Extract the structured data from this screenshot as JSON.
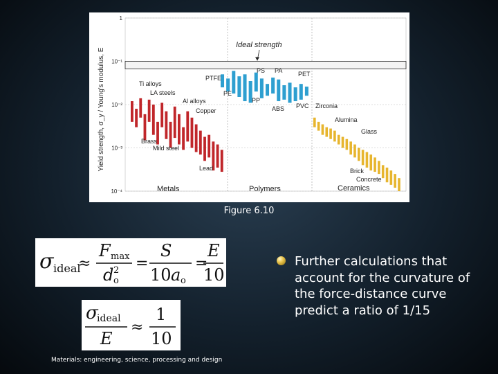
{
  "slide": {
    "figure_caption": "Figure 6.10",
    "bullet": "Further calculations that account for the curvature of the force-distance curve predict a ratio of 1/15",
    "source": "Materials: engineering, science, processing and design"
  },
  "equations": {
    "eq1": {
      "lhs": "σ",
      "lhs_sub": "ideal",
      "approx": "≈",
      "f": "F",
      "f_sub": "max",
      "d": "d",
      "d_sub": "o",
      "d_sup": "2",
      "eq": "=",
      "s": "S",
      "ten": "10",
      "a": "a",
      "a_sub": "o",
      "e": "E"
    },
    "eq2": {
      "lhs": "σ",
      "lhs_sub": "ideal",
      "den": "E",
      "approx": "≈",
      "one": "1",
      "ten": "10"
    }
  },
  "chart_data": {
    "type": "bar",
    "ylabel": "Yield strength, σ_y / Young's modulus, E",
    "yscale": "log",
    "ylim": [
      0.0001,
      1
    ],
    "yticks": [
      {
        "value": 1,
        "label": "1"
      },
      {
        "value": 0.1,
        "label": "10⁻¹"
      },
      {
        "value": 0.01,
        "label": "10⁻²"
      },
      {
        "value": 0.001,
        "label": "10⁻³"
      },
      {
        "value": 0.0001,
        "label": "10⁻⁴"
      }
    ],
    "ideal_strength": {
      "label": "Ideal strength",
      "low": 0.067,
      "high": 0.1
    },
    "groups": [
      {
        "name": "Metals",
        "color": "#c0262a",
        "labels": [
          "Ti alloys",
          "LA steels",
          "Al alloys",
          "Copper",
          "Brass",
          "Mild steel",
          "Lead"
        ],
        "bars": [
          [
            0.012,
            0.004
          ],
          [
            0.008,
            0.003
          ],
          [
            0.014,
            0.005
          ],
          [
            0.006,
            0.0015
          ],
          [
            0.013,
            0.004
          ],
          [
            0.01,
            0.002
          ],
          [
            0.004,
            0.0012
          ],
          [
            0.011,
            0.003
          ],
          [
            0.007,
            0.0016
          ],
          [
            0.004,
            0.001
          ],
          [
            0.009,
            0.0017
          ],
          [
            0.006,
            0.0012
          ],
          [
            0.003,
            0.0009
          ],
          [
            0.007,
            0.0014
          ],
          [
            0.005,
            0.001
          ],
          [
            0.0035,
            0.0008
          ],
          [
            0.0025,
            0.0007
          ],
          [
            0.0018,
            0.0005
          ],
          [
            0.002,
            0.0006
          ],
          [
            0.0014,
            0.0003
          ],
          [
            0.0012,
            0.00035
          ],
          [
            0.0009,
            0.00028
          ]
        ]
      },
      {
        "name": "Polymers",
        "color": "#2e9fd0",
        "labels": [
          "PTFE",
          "PE",
          "PS",
          "PA",
          "PET",
          "PP",
          "ABS",
          "PVC"
        ],
        "bars": [
          [
            0.05,
            0.025
          ],
          [
            0.04,
            0.02
          ],
          [
            0.06,
            0.018
          ],
          [
            0.045,
            0.015
          ],
          [
            0.05,
            0.012
          ],
          [
            0.035,
            0.011
          ],
          [
            0.055,
            0.02
          ],
          [
            0.04,
            0.014
          ],
          [
            0.03,
            0.016
          ],
          [
            0.042,
            0.018
          ],
          [
            0.038,
            0.012
          ],
          [
            0.028,
            0.013
          ],
          [
            0.032,
            0.011
          ],
          [
            0.025,
            0.012
          ],
          [
            0.03,
            0.013
          ],
          [
            0.026,
            0.016
          ]
        ]
      },
      {
        "name": "Ceramics",
        "color": "#e7b52e",
        "labels": [
          "Zirconia",
          "Alumina",
          "Glass",
          "Brick",
          "Concrete"
        ],
        "bars": [
          [
            0.005,
            0.003
          ],
          [
            0.004,
            0.0025
          ],
          [
            0.0035,
            0.002
          ],
          [
            0.003,
            0.0018
          ],
          [
            0.0028,
            0.0016
          ],
          [
            0.0025,
            0.0014
          ],
          [
            0.002,
            0.0012
          ],
          [
            0.0018,
            0.001
          ],
          [
            0.0016,
            0.0009
          ],
          [
            0.0014,
            0.0007
          ],
          [
            0.0012,
            0.0006
          ],
          [
            0.001,
            0.0005
          ],
          [
            0.0009,
            0.0004
          ],
          [
            0.0008,
            0.00035
          ],
          [
            0.0007,
            0.0003
          ],
          [
            0.0006,
            0.00028
          ],
          [
            0.0005,
            0.00025
          ],
          [
            0.0004,
            0.0002
          ],
          [
            0.00035,
            0.00016
          ],
          [
            0.0003,
            0.00014
          ],
          [
            0.00025,
            0.00012
          ],
          [
            0.0002,
            0.0001
          ]
        ]
      }
    ]
  }
}
